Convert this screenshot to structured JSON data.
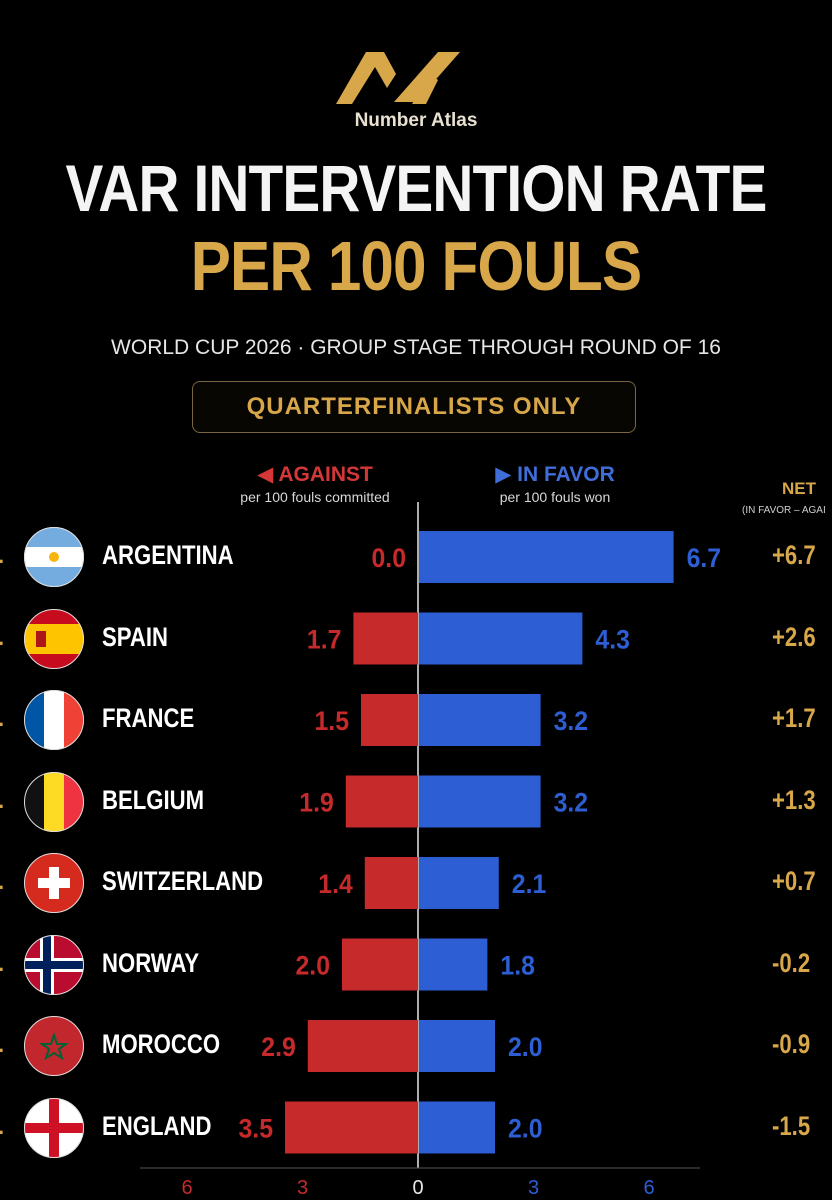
{
  "brand": "Number Atlas",
  "title_line1": "VAR INTERVENTION RATE",
  "title_line2": "PER 100 FOULS",
  "subtitle": "WORLD CUP 2026 · GROUP STAGE THROUGH ROUND OF 16",
  "badge": "QUARTERFINALISTS ONLY",
  "colors": {
    "against": "#c62a2a",
    "favor": "#2d5ed3",
    "gold": "#d7a74a",
    "background": "#000000"
  },
  "headers": {
    "against": "◀ AGAINST",
    "against_sub": "per 100 fouls committed",
    "favor": "▶ IN FAVOR",
    "favor_sub": "per 100 fouls won",
    "net": "NET",
    "net_sub": "(IN FAVOR – AGAI"
  },
  "chart_data": {
    "type": "bar",
    "orientation": "horizontal diverging",
    "categories": [
      "ARGENTINA",
      "SPAIN",
      "FRANCE",
      "BELGIUM",
      "SWITZERLAND",
      "NORWAY",
      "MOROCCO",
      "ENGLAND"
    ],
    "ranks": [
      ".",
      ".",
      ".",
      ".",
      ".",
      ".",
      ".",
      "."
    ],
    "flags": [
      "argentina-flag",
      "spain-flag",
      "france-flag",
      "belgium-flag",
      "switzerland-flag",
      "norway-flag",
      "morocco-flag",
      "england-flag"
    ],
    "series": [
      {
        "name": "AGAINST",
        "values": [
          0.0,
          1.7,
          1.5,
          1.9,
          1.4,
          2.0,
          2.9,
          3.5
        ],
        "labels": [
          "0.0",
          "1.7",
          "1.5",
          "1.9",
          "1.4",
          "2.0",
          "2.9",
          "3.5"
        ]
      },
      {
        "name": "IN FAVOR",
        "values": [
          6.7,
          4.3,
          3.2,
          3.2,
          2.1,
          1.8,
          2.0,
          2.0
        ],
        "labels": [
          "6.7",
          "4.3",
          "3.2",
          "3.2",
          "2.1",
          "1.8",
          "2.0",
          "2.0"
        ]
      }
    ],
    "net": [
      "+6.7",
      "+2.6",
      "+1.7",
      "+1.3",
      "+0.7",
      "-0.2",
      "-0.9",
      "-1.5"
    ],
    "x_ticks": [
      "6",
      "3",
      "0",
      "3",
      "6"
    ],
    "xlim": [
      -6,
      6
    ]
  }
}
